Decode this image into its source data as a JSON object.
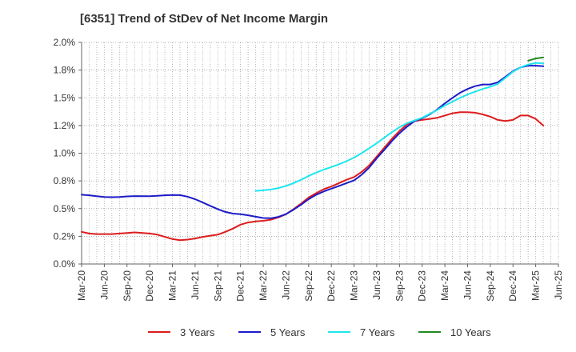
{
  "chart_data": {
    "type": "line",
    "title": "[6351]  Trend of StDev of Net Income Margin",
    "ylim": [
      0.0,
      2.0
    ],
    "y_ticks": [
      "0.0%",
      "0.2%",
      "0.5%",
      "0.8%",
      "1.0%",
      "1.2%",
      "1.5%",
      "1.8%",
      "2.0%"
    ],
    "y_tick_values": [
      0,
      0.25,
      0.5,
      0.75,
      1.0,
      1.25,
      1.5,
      1.75,
      2.0
    ],
    "x_ticks": [
      "Mar-20",
      "Jun-20",
      "Sep-20",
      "Dec-20",
      "Mar-21",
      "Jun-21",
      "Sep-21",
      "Dec-21",
      "Mar-22",
      "Jun-22",
      "Sep-22",
      "Dec-22",
      "Mar-23",
      "Jun-23",
      "Sep-23",
      "Dec-23",
      "Mar-24",
      "Jun-24",
      "Sep-24",
      "Dec-24",
      "Mar-25",
      "Jun-25"
    ],
    "grid": true,
    "legend_position": "bottom",
    "series": [
      {
        "name": "3 Years",
        "color": "#dd1c1c",
        "points": [
          [
            "Mar-20",
            0.29
          ],
          [
            "Apr-20",
            0.275
          ],
          [
            "May-20",
            0.27
          ],
          [
            "Jul-20",
            0.27
          ],
          [
            "Aug-20",
            0.275
          ],
          [
            "Sep-20",
            0.28
          ],
          [
            "Oct-20",
            0.285
          ],
          [
            "Dec-20",
            0.275
          ],
          [
            "Jan-21",
            0.265
          ],
          [
            "Feb-21",
            0.245
          ],
          [
            "Mar-21",
            0.225
          ],
          [
            "Apr-21",
            0.215
          ],
          [
            "May-21",
            0.22
          ],
          [
            "Jun-21",
            0.23
          ],
          [
            "Jul-21",
            0.245
          ],
          [
            "Sep-21",
            0.265
          ],
          [
            "Oct-21",
            0.29
          ],
          [
            "Nov-21",
            0.32
          ],
          [
            "Dec-21",
            0.355
          ],
          [
            "Jan-22",
            0.375
          ],
          [
            "Feb-22",
            0.385
          ],
          [
            "Mar-22",
            0.39
          ],
          [
            "Apr-22",
            0.4
          ],
          [
            "May-22",
            0.42
          ],
          [
            "Jun-22",
            0.45
          ],
          [
            "Jul-22",
            0.495
          ],
          [
            "Aug-22",
            0.545
          ],
          [
            "Sep-22",
            0.6
          ],
          [
            "Oct-22",
            0.64
          ],
          [
            "Nov-22",
            0.675
          ],
          [
            "Dec-22",
            0.7
          ],
          [
            "Jan-23",
            0.73
          ],
          [
            "Feb-23",
            0.76
          ],
          [
            "Mar-23",
            0.785
          ],
          [
            "Apr-23",
            0.83
          ],
          [
            "May-23",
            0.89
          ],
          [
            "Jun-23",
            0.97
          ],
          [
            "Jul-23",
            1.05
          ],
          [
            "Aug-23",
            1.13
          ],
          [
            "Sep-23",
            1.2
          ],
          [
            "Oct-23",
            1.26
          ],
          [
            "Nov-23",
            1.29
          ],
          [
            "Dec-23",
            1.3
          ],
          [
            "Jan-24",
            1.31
          ],
          [
            "Feb-24",
            1.32
          ],
          [
            "Mar-24",
            1.34
          ],
          [
            "Apr-24",
            1.36
          ],
          [
            "May-24",
            1.37
          ],
          [
            "Jun-24",
            1.37
          ],
          [
            "Jul-24",
            1.365
          ],
          [
            "Aug-24",
            1.35
          ],
          [
            "Sep-24",
            1.33
          ],
          [
            "Oct-24",
            1.3
          ],
          [
            "Nov-24",
            1.29
          ],
          [
            "Dec-24",
            1.3
          ],
          [
            "Jan-25",
            1.34
          ],
          [
            "Feb-25",
            1.34
          ],
          [
            "Mar-25",
            1.31
          ],
          [
            "Apr-25",
            1.25
          ]
        ]
      },
      {
        "name": "5 Years",
        "color": "#1c1cc8",
        "points": [
          [
            "Mar-20",
            0.625
          ],
          [
            "Apr-20",
            0.62
          ],
          [
            "May-20",
            0.612
          ],
          [
            "Jun-20",
            0.605
          ],
          [
            "Jul-20",
            0.603
          ],
          [
            "Aug-20",
            0.605
          ],
          [
            "Sep-20",
            0.61
          ],
          [
            "Oct-20",
            0.613
          ],
          [
            "Dec-20",
            0.612
          ],
          [
            "Jan-21",
            0.615
          ],
          [
            "Feb-21",
            0.62
          ],
          [
            "Mar-21",
            0.623
          ],
          [
            "Apr-21",
            0.622
          ],
          [
            "May-21",
            0.608
          ],
          [
            "Jun-21",
            0.585
          ],
          [
            "Jul-21",
            0.555
          ],
          [
            "Aug-21",
            0.525
          ],
          [
            "Sep-21",
            0.495
          ],
          [
            "Oct-21",
            0.47
          ],
          [
            "Nov-21",
            0.455
          ],
          [
            "Dec-21",
            0.45
          ],
          [
            "Jan-22",
            0.44
          ],
          [
            "Feb-22",
            0.427
          ],
          [
            "Mar-22",
            0.415
          ],
          [
            "Apr-22",
            0.413
          ],
          [
            "May-22",
            0.425
          ],
          [
            "Jun-22",
            0.45
          ],
          [
            "Jul-22",
            0.49
          ],
          [
            "Aug-22",
            0.535
          ],
          [
            "Sep-22",
            0.585
          ],
          [
            "Oct-22",
            0.625
          ],
          [
            "Nov-22",
            0.655
          ],
          [
            "Dec-22",
            0.68
          ],
          [
            "Jan-23",
            0.705
          ],
          [
            "Feb-23",
            0.73
          ],
          [
            "Mar-23",
            0.755
          ],
          [
            "Apr-23",
            0.805
          ],
          [
            "May-23",
            0.87
          ],
          [
            "Jun-23",
            0.955
          ],
          [
            "Jul-23",
            1.03
          ],
          [
            "Aug-23",
            1.11
          ],
          [
            "Sep-23",
            1.18
          ],
          [
            "Oct-23",
            1.24
          ],
          [
            "Nov-23",
            1.29
          ],
          [
            "Dec-23",
            1.315
          ],
          [
            "Jan-24",
            1.35
          ],
          [
            "Feb-24",
            1.395
          ],
          [
            "Mar-24",
            1.45
          ],
          [
            "Apr-24",
            1.5
          ],
          [
            "May-24",
            1.545
          ],
          [
            "Jun-24",
            1.58
          ],
          [
            "Jul-24",
            1.605
          ],
          [
            "Aug-24",
            1.62
          ],
          [
            "Sep-24",
            1.62
          ],
          [
            "Oct-24",
            1.64
          ],
          [
            "Nov-24",
            1.69
          ],
          [
            "Dec-24",
            1.74
          ],
          [
            "Jan-25",
            1.775
          ],
          [
            "Feb-25",
            1.79
          ],
          [
            "Mar-25",
            1.79
          ],
          [
            "Apr-25",
            1.785
          ]
        ]
      },
      {
        "name": "7 Years",
        "color": "#1ee6ee",
        "points": [
          [
            "Feb-22",
            0.66
          ],
          [
            "Mar-22",
            0.665
          ],
          [
            "Apr-22",
            0.672
          ],
          [
            "May-22",
            0.685
          ],
          [
            "Jun-22",
            0.705
          ],
          [
            "Jul-22",
            0.73
          ],
          [
            "Aug-22",
            0.76
          ],
          [
            "Sep-22",
            0.795
          ],
          [
            "Oct-22",
            0.825
          ],
          [
            "Nov-22",
            0.852
          ],
          [
            "Dec-22",
            0.875
          ],
          [
            "Jan-23",
            0.9
          ],
          [
            "Feb-23",
            0.928
          ],
          [
            "Mar-23",
            0.96
          ],
          [
            "Apr-23",
            1.0
          ],
          [
            "May-23",
            1.045
          ],
          [
            "Jun-23",
            1.09
          ],
          [
            "Jul-23",
            1.14
          ],
          [
            "Aug-23",
            1.19
          ],
          [
            "Sep-23",
            1.235
          ],
          [
            "Oct-23",
            1.27
          ],
          [
            "Nov-23",
            1.295
          ],
          [
            "Dec-23",
            1.32
          ],
          [
            "Jan-24",
            1.355
          ],
          [
            "Feb-24",
            1.39
          ],
          [
            "Mar-24",
            1.43
          ],
          [
            "Apr-24",
            1.465
          ],
          [
            "May-24",
            1.5
          ],
          [
            "Jun-24",
            1.53
          ],
          [
            "Jul-24",
            1.555
          ],
          [
            "Aug-24",
            1.58
          ],
          [
            "Sep-24",
            1.6
          ],
          [
            "Oct-24",
            1.625
          ],
          [
            "Nov-24",
            1.68
          ],
          [
            "Dec-24",
            1.735
          ],
          [
            "Jan-25",
            1.775
          ],
          [
            "Feb-25",
            1.8
          ],
          [
            "Mar-25",
            1.815
          ],
          [
            "Apr-25",
            1.81
          ]
        ]
      },
      {
        "name": "10 Years",
        "color": "#228b22",
        "points": [
          [
            "Feb-25",
            1.835
          ],
          [
            "Mar-25",
            1.855
          ],
          [
            "Apr-25",
            1.865
          ]
        ]
      }
    ]
  }
}
